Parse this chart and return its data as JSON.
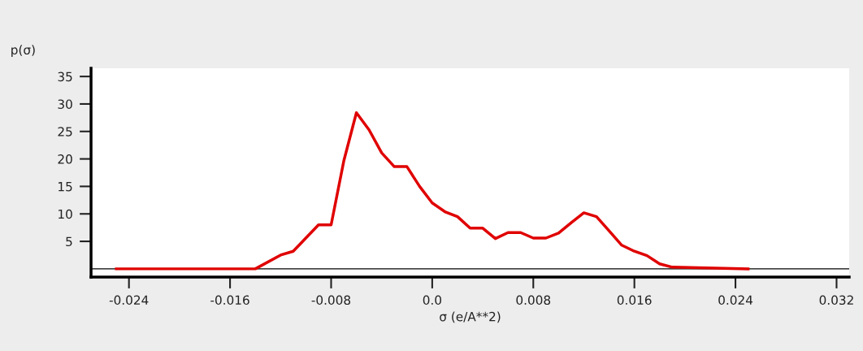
{
  "chart_data": {
    "type": "line",
    "xlabel": "σ (e/A**2)",
    "ylabel": "p(σ)",
    "x": [
      -0.025,
      -0.014,
      -0.012,
      -0.011,
      -0.009,
      -0.008,
      -0.007,
      -0.006,
      -0.005,
      -0.004,
      -0.003,
      -0.002,
      -0.001,
      0.0,
      0.001,
      0.002,
      0.003,
      0.004,
      0.005,
      0.006,
      0.007,
      0.008,
      0.009,
      0.01,
      0.011,
      0.012,
      0.013,
      0.014,
      0.015,
      0.016,
      0.017,
      0.018,
      0.019,
      0.025
    ],
    "series": [
      {
        "color": "#e00000",
        "values": [
          0,
          0,
          2.5,
          3.2,
          8.0,
          8.0,
          19.6,
          28.4,
          25.3,
          21.1,
          18.6,
          18.6,
          15.0,
          12.0,
          10.4,
          9.5,
          7.4,
          7.4,
          5.5,
          6.6,
          6.6,
          5.6,
          5.6,
          6.5,
          8.4,
          10.2,
          9.5,
          6.9,
          4.3,
          3.2,
          2.4,
          0.9,
          0.3,
          0
        ]
      }
    ],
    "xlim": [
      -0.027,
      0.033
    ],
    "ylim": [
      -1.5,
      36.5
    ],
    "xticks": [
      -0.024,
      -0.016,
      -0.008,
      {
        "value": 0,
        "label": "0.0"
      },
      0.008,
      0.016,
      0.024,
      0.032
    ],
    "yticks": [
      5,
      10,
      15,
      20,
      25,
      30,
      35
    ],
    "ref_lines": [
      {
        "axis": "y",
        "value": 0,
        "color": "#000000"
      }
    ],
    "grid": false,
    "legend": false,
    "marker": "none",
    "line_style": "solid"
  }
}
